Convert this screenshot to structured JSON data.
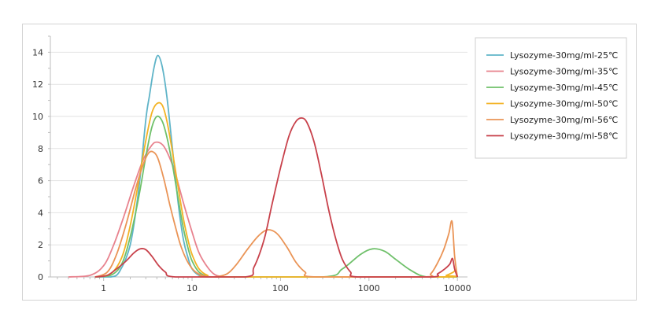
{
  "chart_data": {
    "type": "line",
    "x_scale": "log",
    "xlim": [
      0.25,
      13000
    ],
    "ylim": [
      0,
      15
    ],
    "x_ticks": [
      1,
      10,
      100,
      1000,
      10000
    ],
    "y_ticks": [
      0,
      2,
      4,
      6,
      8,
      10,
      12,
      14
    ],
    "grid": "horizontal",
    "legend_position": "right",
    "series": [
      {
        "name": "Lysozyme-30mg/ml-25℃",
        "color": "#5fb4c8",
        "points": [
          [
            0.8,
            0
          ],
          [
            1.2,
            0
          ],
          [
            1.5,
            0.3
          ],
          [
            2,
            2
          ],
          [
            2.5,
            5.5
          ],
          [
            3,
            9.8
          ],
          [
            3.3,
            11.3
          ],
          [
            3.7,
            13
          ],
          [
            4.1,
            13.8
          ],
          [
            4.6,
            13.1
          ],
          [
            5.2,
            11.2
          ],
          [
            6,
            8
          ],
          [
            7,
            4.5
          ],
          [
            8,
            2.3
          ],
          [
            9,
            1.2
          ],
          [
            10,
            0.5
          ],
          [
            12,
            0.1
          ],
          [
            15,
            0
          ]
        ]
      },
      {
        "name": "Lysozyme-30mg/ml-35℃",
        "color": "#e8828e",
        "points": [
          [
            0.4,
            0
          ],
          [
            0.7,
            0.1
          ],
          [
            1,
            0.7
          ],
          [
            1.3,
            2
          ],
          [
            1.7,
            3.8
          ],
          [
            2.2,
            5.7
          ],
          [
            2.8,
            7.3
          ],
          [
            3.5,
            8.2
          ],
          [
            4,
            8.4
          ],
          [
            4.7,
            8.2
          ],
          [
            5.5,
            7.5
          ],
          [
            6.5,
            6.4
          ],
          [
            8,
            4.6
          ],
          [
            10,
            2.8
          ],
          [
            12,
            1.5
          ],
          [
            15,
            0.6
          ],
          [
            18,
            0.15
          ],
          [
            22,
            0
          ]
        ]
      },
      {
        "name": "Lysozyme-30mg/ml-45℃",
        "color": "#6fc06a",
        "points": [
          [
            0.8,
            0
          ],
          [
            1.2,
            0.1
          ],
          [
            1.6,
            0.8
          ],
          [
            2,
            2.5
          ],
          [
            2.5,
            5
          ],
          [
            3,
            7.5
          ],
          [
            3.5,
            9.3
          ],
          [
            4,
            10
          ],
          [
            4.6,
            9.7
          ],
          [
            5.2,
            8.7
          ],
          [
            6,
            7
          ],
          [
            7,
            4.8
          ],
          [
            8,
            3
          ],
          [
            9,
            1.8
          ],
          [
            10,
            1
          ],
          [
            12,
            0.3
          ],
          [
            15,
            0.05
          ],
          [
            20,
            0
          ],
          [
            300,
            0
          ],
          [
            500,
            0.5
          ],
          [
            800,
            1.4
          ],
          [
            1100,
            1.75
          ],
          [
            1500,
            1.6
          ],
          [
            2000,
            1.1
          ],
          [
            3000,
            0.4
          ],
          [
            4500,
            0
          ],
          [
            10000,
            0
          ]
        ]
      },
      {
        "name": "Lysozyme-30mg/ml-50℃",
        "color": "#f3b324",
        "points": [
          [
            0.8,
            0
          ],
          [
            1.2,
            0.2
          ],
          [
            1.6,
            1.2
          ],
          [
            2,
            3.2
          ],
          [
            2.5,
            6
          ],
          [
            3,
            8.5
          ],
          [
            3.5,
            10.2
          ],
          [
            4,
            10.8
          ],
          [
            4.6,
            10.7
          ],
          [
            5.2,
            9.7
          ],
          [
            6,
            7.8
          ],
          [
            7,
            5.5
          ],
          [
            8,
            3.6
          ],
          [
            9,
            2.3
          ],
          [
            10,
            1.4
          ],
          [
            12,
            0.5
          ],
          [
            15,
            0.1
          ],
          [
            20,
            0
          ],
          [
            6000,
            0
          ],
          [
            7500,
            0.1
          ],
          [
            9000,
            0.3
          ],
          [
            9500,
            0.4
          ],
          [
            10000,
            0
          ]
        ]
      },
      {
        "name": "Lysozyme-30mg/ml-56℃",
        "color": "#ea9456",
        "points": [
          [
            0.8,
            0
          ],
          [
            1.1,
            0.3
          ],
          [
            1.4,
            1.4
          ],
          [
            1.8,
            3.3
          ],
          [
            2.3,
            5.5
          ],
          [
            2.8,
            7
          ],
          [
            3.2,
            7.7
          ],
          [
            3.6,
            7.8
          ],
          [
            4.1,
            7.4
          ],
          [
            4.8,
            6.1
          ],
          [
            5.6,
            4.5
          ],
          [
            6.5,
            3.1
          ],
          [
            7.5,
            1.9
          ],
          [
            9,
            0.9
          ],
          [
            11,
            0.3
          ],
          [
            14,
            0.05
          ],
          [
            18,
            0
          ],
          [
            25,
            0.2
          ],
          [
            32,
            0.8
          ],
          [
            42,
            1.7
          ],
          [
            55,
            2.5
          ],
          [
            68,
            2.9
          ],
          [
            80,
            2.9
          ],
          [
            95,
            2.6
          ],
          [
            120,
            1.8
          ],
          [
            150,
            0.9
          ],
          [
            190,
            0.3
          ],
          [
            250,
            0
          ],
          [
            4000,
            0
          ],
          [
            5000,
            0.2
          ],
          [
            6000,
            0.9
          ],
          [
            7000,
            1.7
          ],
          [
            8000,
            2.7
          ],
          [
            8700,
            3.45
          ],
          [
            9300,
            1.3
          ],
          [
            10000,
            0
          ]
        ]
      },
      {
        "name": "Lysozyme-30mg/ml-58℃",
        "color": "#c8414b",
        "points": [
          [
            0.8,
            0
          ],
          [
            1.1,
            0.1
          ],
          [
            1.4,
            0.5
          ],
          [
            1.8,
            1
          ],
          [
            2.2,
            1.5
          ],
          [
            2.6,
            1.75
          ],
          [
            3,
            1.7
          ],
          [
            3.5,
            1.3
          ],
          [
            4.2,
            0.7
          ],
          [
            5,
            0.3
          ],
          [
            6.5,
            0
          ],
          [
            40,
            0
          ],
          [
            50,
            0.6
          ],
          [
            65,
            2.3
          ],
          [
            80,
            4.5
          ],
          [
            100,
            6.8
          ],
          [
            125,
            8.8
          ],
          [
            150,
            9.7
          ],
          [
            175,
            9.9
          ],
          [
            200,
            9.6
          ],
          [
            240,
            8.4
          ],
          [
            290,
            6.4
          ],
          [
            350,
            4.2
          ],
          [
            420,
            2.4
          ],
          [
            500,
            1.1
          ],
          [
            620,
            0.3
          ],
          [
            750,
            0
          ],
          [
            5000,
            0
          ],
          [
            6000,
            0.2
          ],
          [
            7200,
            0.5
          ],
          [
            8200,
            0.8
          ],
          [
            8800,
            1.15
          ],
          [
            9300,
            0.5
          ],
          [
            10000,
            0
          ]
        ]
      }
    ]
  }
}
